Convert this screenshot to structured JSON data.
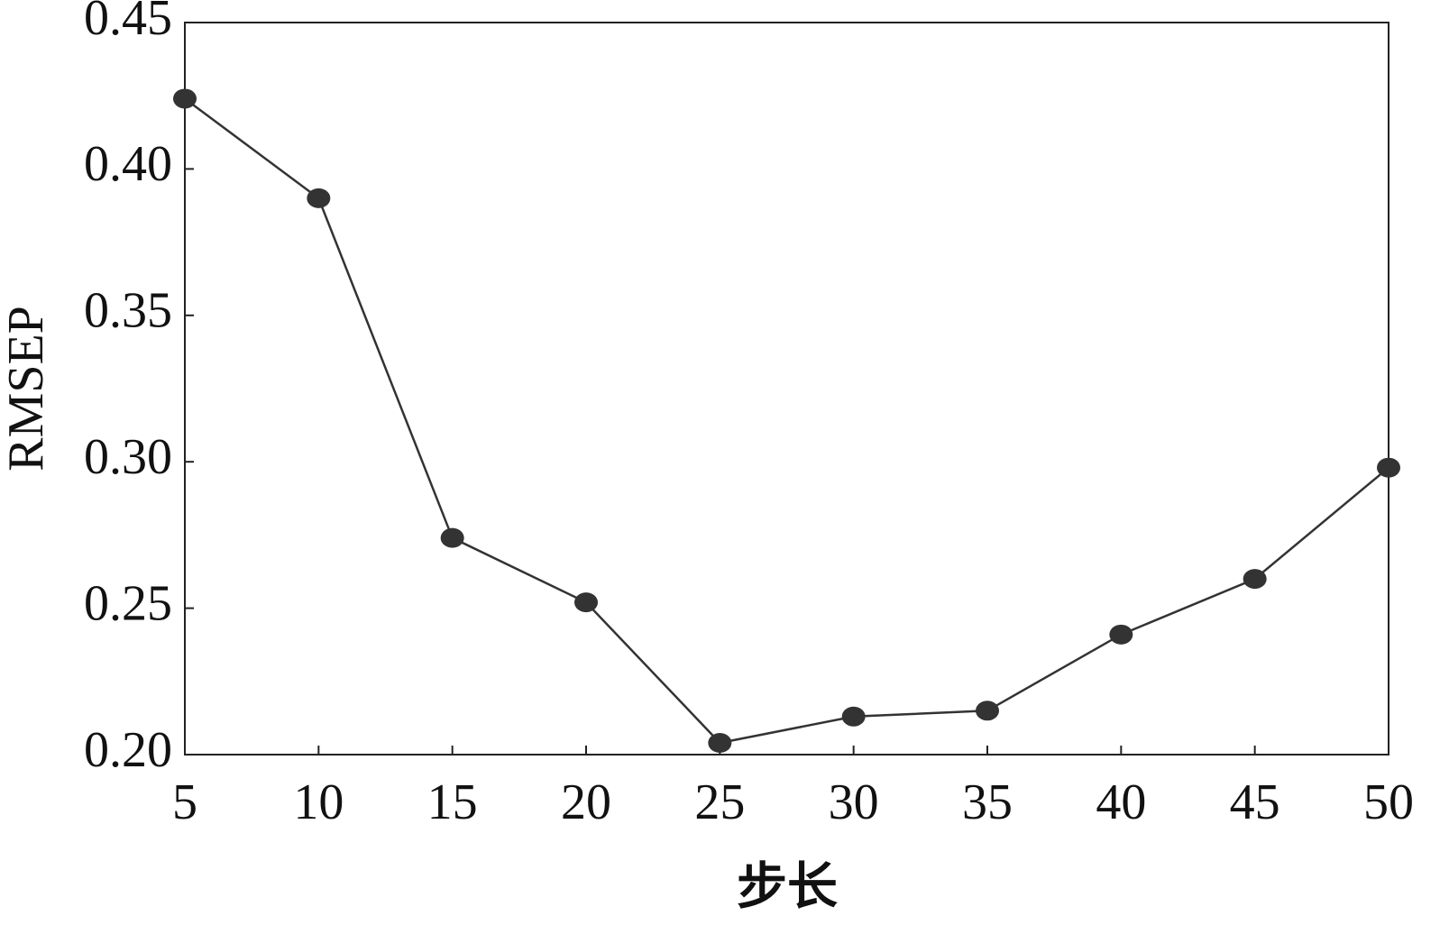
{
  "chart_data": {
    "type": "line",
    "xlabel": "步长",
    "ylabel": "RMSEP",
    "x": [
      5,
      10,
      15,
      20,
      25,
      30,
      35,
      40,
      45,
      50
    ],
    "series": [
      {
        "name": "RMSEP",
        "color": "#333333",
        "values": [
          0.424,
          0.39,
          0.274,
          0.252,
          0.204,
          0.213,
          0.215,
          0.241,
          0.26,
          0.298
        ]
      }
    ],
    "xlim": [
      5,
      50
    ],
    "xticks": [
      5,
      10,
      15,
      20,
      25,
      30,
      35,
      40,
      45,
      50
    ],
    "ylim": [
      0.2,
      0.45
    ],
    "yticks": [
      {
        "value": 0.2,
        "label": "0.20"
      },
      0.25,
      {
        "value": 0.3,
        "label": "0.30"
      },
      0.35,
      {
        "value": 0.4,
        "label": "0.40"
      },
      0.45
    ],
    "grid": false,
    "legend": false
  }
}
